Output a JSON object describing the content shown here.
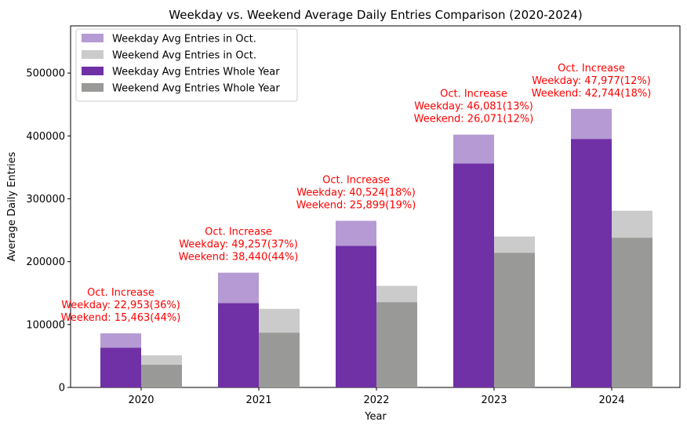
{
  "chart_data": {
    "type": "bar",
    "title": "Weekday vs. Weekend Average Daily Entries Comparison (2020-2024)",
    "xlabel": "Year",
    "ylabel": "Average Daily Entries",
    "categories": [
      "2020",
      "2021",
      "2022",
      "2023",
      "2024"
    ],
    "ylim": [
      0,
      575000
    ],
    "yticks": [
      0,
      100000,
      200000,
      300000,
      400000,
      500000
    ],
    "grid": false,
    "legend_position": "top-left",
    "series": [
      {
        "name": "Weekday Avg Entries in Oct.",
        "color": "#b59ad3",
        "group": "weekday",
        "layer": "back",
        "values": [
          86000,
          182500,
          265000,
          402000,
          443000
        ]
      },
      {
        "name": "Weekend Avg Entries in Oct.",
        "color": "#cbcbcb",
        "group": "weekend",
        "layer": "back",
        "values": [
          51000,
          125000,
          161500,
          240000,
          281000
        ]
      },
      {
        "name": "Weekday Avg Entries Whole Year",
        "color": "#7030a6",
        "group": "weekday",
        "layer": "front",
        "values": [
          63000,
          134000,
          225000,
          356000,
          395000
        ]
      },
      {
        "name": "Weekend Avg Entries Whole Year",
        "color": "#999a97",
        "group": "weekend",
        "layer": "front",
        "values": [
          36000,
          87000,
          135500,
          214000,
          238000
        ]
      }
    ],
    "annotations": [
      {
        "category": "2020",
        "lines": [
          "Oct. Increase",
          "Weekday: 22,953(36%)",
          "Weekend: 15,463(44%)"
        ],
        "color": "#ff0000"
      },
      {
        "category": "2021",
        "lines": [
          "Oct. Increase",
          "Weekday: 49,257(37%)",
          "Weekend: 38,440(44%)"
        ],
        "color": "#ff0000"
      },
      {
        "category": "2022",
        "lines": [
          "Oct. Increase",
          "Weekday: 40,524(18%)",
          "Weekend: 25,899(19%)"
        ],
        "color": "#ff0000"
      },
      {
        "category": "2023",
        "lines": [
          "Oct. Increase",
          "Weekday: 46,081(13%)",
          "Weekend: 26,071(12%)"
        ],
        "color": "#ff0000"
      },
      {
        "category": "2024",
        "lines": [
          "Oct. Increase",
          "Weekday: 47,977(12%)",
          "Weekend: 42,744(18%)"
        ],
        "color": "#ff0000"
      }
    ]
  }
}
